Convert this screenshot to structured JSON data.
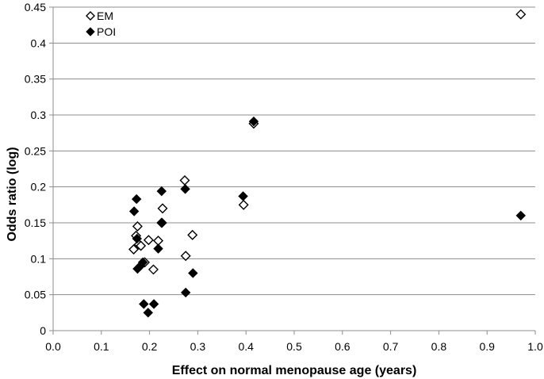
{
  "chart_data": {
    "type": "scatter",
    "title": "",
    "xlabel": "Effect on normal menopause age (years)",
    "ylabel": "Odds ratio (log)",
    "xlim": [
      0.0,
      1.0
    ],
    "ylim": [
      0,
      0.45
    ],
    "x_ticks": [
      "0.0",
      "0.1",
      "0.2",
      "0.3",
      "0.4",
      "0.5",
      "0.6",
      "0.7",
      "0.8",
      "0.9",
      "1.0"
    ],
    "x_tick_values": [
      0.0,
      0.1,
      0.2,
      0.3,
      0.4,
      0.5,
      0.6,
      0.7,
      0.8,
      0.9,
      1.0
    ],
    "y_ticks": [
      "0",
      "0.05",
      "0.1",
      "0.15",
      "0.2",
      "0.25",
      "0.3",
      "0.35",
      "0.4",
      "0.45"
    ],
    "y_tick_values": [
      0,
      0.05,
      0.1,
      0.15,
      0.2,
      0.25,
      0.3,
      0.35,
      0.4,
      0.45
    ],
    "grid": "horizontal",
    "legend_position": "top-left",
    "series": [
      {
        "name": "EM",
        "marker": "open-diamond",
        "color": "#000000",
        "points": [
          [
            0.167,
            0.113
          ],
          [
            0.172,
            0.132
          ],
          [
            0.175,
            0.145
          ],
          [
            0.178,
            0.12
          ],
          [
            0.182,
            0.118
          ],
          [
            0.19,
            0.095
          ],
          [
            0.198,
            0.126
          ],
          [
            0.208,
            0.085
          ],
          [
            0.218,
            0.125
          ],
          [
            0.225,
            0.15
          ],
          [
            0.227,
            0.17
          ],
          [
            0.273,
            0.209
          ],
          [
            0.275,
            0.104
          ],
          [
            0.289,
            0.133
          ],
          [
            0.395,
            0.175
          ],
          [
            0.416,
            0.288
          ],
          [
            0.97,
            0.44
          ]
        ]
      },
      {
        "name": "POI",
        "marker": "filled-diamond",
        "color": "#000000",
        "points": [
          [
            0.168,
            0.166
          ],
          [
            0.173,
            0.183
          ],
          [
            0.174,
            0.128
          ],
          [
            0.175,
            0.086
          ],
          [
            0.181,
            0.09
          ],
          [
            0.186,
            0.095
          ],
          [
            0.188,
            0.037
          ],
          [
            0.197,
            0.025
          ],
          [
            0.209,
            0.037
          ],
          [
            0.218,
            0.114
          ],
          [
            0.225,
            0.194
          ],
          [
            0.226,
            0.15
          ],
          [
            0.274,
            0.197
          ],
          [
            0.275,
            0.053
          ],
          [
            0.29,
            0.08
          ],
          [
            0.394,
            0.187
          ],
          [
            0.416,
            0.291
          ],
          [
            0.97,
            0.16
          ]
        ]
      }
    ]
  }
}
